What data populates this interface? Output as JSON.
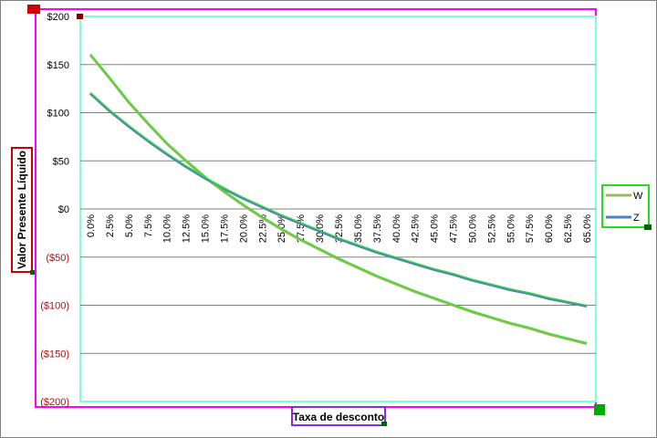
{
  "chart_data": {
    "type": "line",
    "title": "",
    "xlabel": "Taxa de desconto",
    "ylabel": "Valor Presente Líquido",
    "ylim": [
      -200,
      200
    ],
    "y_ticks": [
      200,
      150,
      100,
      50,
      0,
      -50,
      -100,
      -150,
      -200
    ],
    "y_tick_labels": [
      "$200",
      "$150",
      "$100",
      "$50",
      "$0",
      "($50)",
      "($100)",
      "($150)",
      "($200)"
    ],
    "negative_label_color": "#cc0000",
    "positive_label_color": "#000000",
    "grid": true,
    "legend_position": "right",
    "categories": [
      "0.0%",
      "2.5%",
      "5.0%",
      "7.5%",
      "10.0%",
      "12.5%",
      "15.0%",
      "17.5%",
      "20.0%",
      "22.5%",
      "25.0%",
      "27.5%",
      "30.0%",
      "32.5%",
      "35.0%",
      "37.5%",
      "40.0%",
      "42.5%",
      "45.0%",
      "47.5%",
      "50.0%",
      "52.5%",
      "55.0%",
      "57.5%",
      "60.0%",
      "62.5%",
      "65.0%"
    ],
    "series": [
      {
        "name": "W",
        "color": "#9bbb59",
        "values": [
          160,
          136,
          111,
          89,
          68,
          50,
          33,
          18,
          4,
          -9,
          -21,
          -32,
          -42,
          -52,
          -61,
          -70,
          -78,
          -86,
          -93,
          -100,
          -107,
          -113,
          -119,
          -124,
          -130,
          -135,
          -140
        ]
      },
      {
        "name": "Z",
        "color": "#4f81bd",
        "values": [
          120,
          102,
          86,
          71,
          57,
          44,
          32,
          21,
          11,
          2,
          -7,
          -15,
          -23,
          -31,
          -38,
          -45,
          -51,
          -57,
          -63,
          -68,
          -74,
          -79,
          -84,
          -88,
          -93,
          -97,
          -101
        ]
      }
    ]
  }
}
